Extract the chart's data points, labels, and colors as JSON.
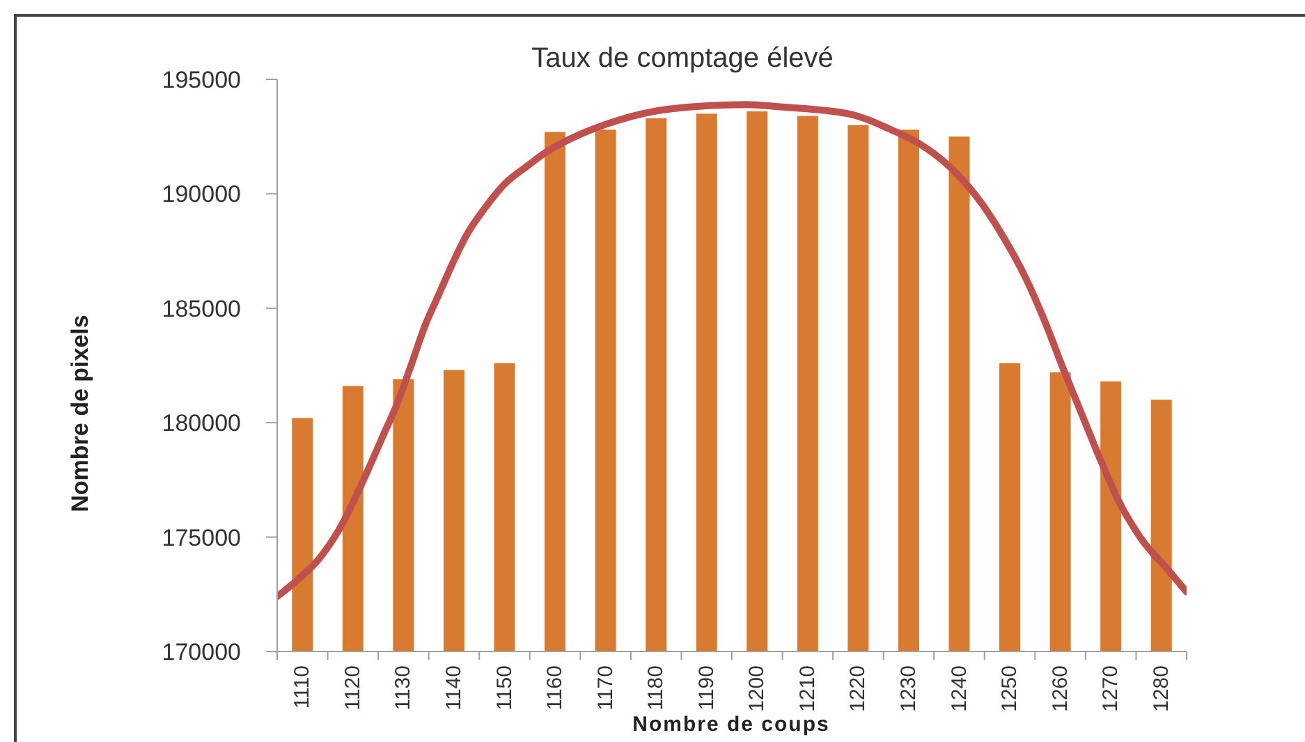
{
  "chart_data": {
    "type": "bar",
    "title": "Taux de comptage élevé",
    "xlabel": "Nombre de coups",
    "ylabel": "Nombre de pixels",
    "x": [
      1110,
      1120,
      1130,
      1140,
      1150,
      1160,
      1170,
      1180,
      1190,
      1200,
      1210,
      1220,
      1230,
      1240,
      1250,
      1260,
      1270,
      1280
    ],
    "series": [
      {
        "color": "#d87a30",
        "values": [
          180200,
          181600,
          181900,
          182300,
          182600,
          192700,
          192800,
          193300,
          193500,
          193600,
          193400,
          193000,
          192800,
          192500,
          182600,
          182200,
          181800,
          181000
        ]
      },
      {
        "type": "line",
        "color": "#c0504d",
        "marker": "none",
        "x": [
          1105,
          1109.4,
          1113.1,
          1117.7,
          1122.3,
          1125.9,
          1128.7,
          1131.5,
          1134.2,
          1137,
          1139.8,
          1142.5,
          1146.2,
          1149.9,
          1154.4,
          1158.1,
          1165,
          1172.3,
          1182.5,
          1198,
          1204.5,
          1218,
          1226.5,
          1232,
          1237.5,
          1243,
          1248.5,
          1253.2,
          1256.8,
          1260.5,
          1264.2,
          1267.9,
          1271.5,
          1276.1,
          1281.6,
          1285
        ],
        "values": [
          172400,
          173200,
          174000,
          175500,
          177600,
          179400,
          180800,
          182500,
          184200,
          185600,
          187000,
          188200,
          189400,
          190400,
          191200,
          191800,
          192600,
          193200,
          193700,
          193900,
          193800,
          193500,
          192800,
          192200,
          191300,
          190000,
          188200,
          186300,
          184500,
          182400,
          180400,
          178400,
          176600,
          174900,
          173500,
          172600
        ]
      }
    ],
    "xlim": [
      1105,
      1285
    ],
    "xticks": [
      {
        "value": 1105,
        "label": null
      },
      1110,
      {
        "value": 1115,
        "label": null
      },
      1120,
      {
        "value": 1125,
        "label": null
      },
      1130,
      {
        "value": 1135,
        "label": null
      },
      1140,
      {
        "value": 1145,
        "label": null
      },
      1150,
      {
        "value": 1155,
        "label": null
      },
      1160,
      {
        "value": 1165,
        "label": null
      },
      1170,
      {
        "value": 1175,
        "label": null
      },
      1180,
      {
        "value": 1185,
        "label": null
      },
      1190,
      {
        "value": 1195,
        "label": null
      },
      1200,
      {
        "value": 1205,
        "label": null
      },
      1210,
      {
        "value": 1215,
        "label": null
      },
      1220,
      {
        "value": 1225,
        "label": null
      },
      1230,
      {
        "value": 1235,
        "label": null
      },
      1240,
      {
        "value": 1245,
        "label": null
      },
      1250,
      {
        "value": 1255,
        "label": null
      },
      1260,
      {
        "value": 1265,
        "label": null
      },
      1270,
      {
        "value": 1275,
        "label": null
      },
      1280,
      {
        "value": 1285,
        "label": null
      }
    ],
    "ylim": [
      170000,
      195000
    ],
    "yticks": [
      170000,
      175000,
      180000,
      185000,
      190000,
      195000
    ]
  }
}
